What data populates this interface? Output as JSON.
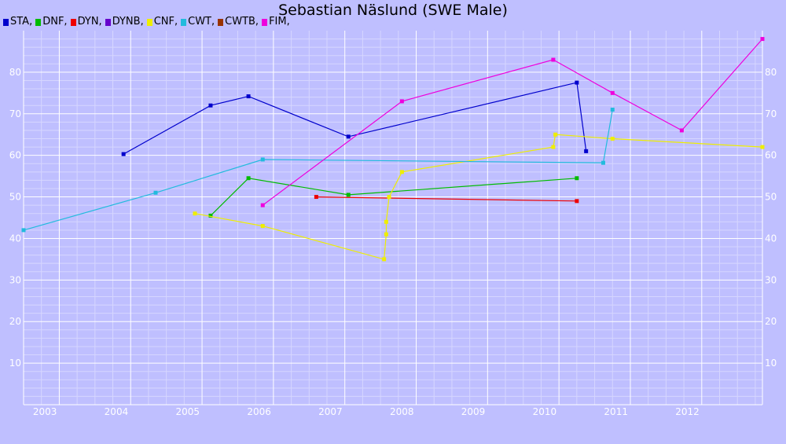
{
  "chart_data": {
    "type": "line",
    "title": "Sebastian Näslund (SWE Male)",
    "xlabel": "",
    "ylabel": "",
    "xlim": [
      2002.5,
      2012.85
    ],
    "ylim": [
      0,
      90
    ],
    "x_ticks": [
      "2003",
      "2004",
      "2005",
      "2006",
      "2007",
      "2008",
      "2009",
      "2010",
      "2011",
      "2012"
    ],
    "y_ticks": [
      "10",
      "20",
      "30",
      "40",
      "50",
      "60",
      "70",
      "80"
    ],
    "grid": true,
    "legend_position": "top-left",
    "legend": [
      {
        "label": "STA,",
        "color": "#0000cc"
      },
      {
        "label": "DNF,",
        "color": "#00bb00"
      },
      {
        "label": "DYN,",
        "color": "#ee0000"
      },
      {
        "label": "DYNB,",
        "color": "#6600cc"
      },
      {
        "label": "CNF,",
        "color": "#eeee00"
      },
      {
        "label": "CWT,",
        "color": "#22bbdd"
      },
      {
        "label": "CWTB,",
        "color": "#993300"
      },
      {
        "label": "FIM,",
        "color": "#ee00dd"
      }
    ],
    "series": [
      {
        "name": "STA",
        "color": "#0000cc",
        "x": [
          2003.9,
          2005.12,
          2005.65,
          2007.05,
          2010.25,
          2010.38
        ],
        "y": [
          60.3,
          72.0,
          74.2,
          64.5,
          77.5,
          61.0
        ]
      },
      {
        "name": "DNF",
        "color": "#00bb00",
        "x": [
          2005.12,
          2005.65,
          2007.05,
          2010.25
        ],
        "y": [
          45.5,
          54.5,
          50.5,
          54.5
        ]
      },
      {
        "name": "DYN",
        "color": "#ee0000",
        "x": [
          2006.6,
          2010.25
        ],
        "y": [
          50.0,
          49.0
        ]
      },
      {
        "name": "CNF",
        "color": "#eeee00",
        "x": [
          2004.9,
          2005.85,
          2007.55,
          2007.58,
          2007.58,
          2007.62,
          2007.8,
          2009.92,
          2009.95,
          2010.75,
          2012.85
        ],
        "y": [
          46.0,
          43.0,
          35.0,
          41.0,
          44.0,
          50.0,
          56.0,
          62.0,
          65.0,
          64.0,
          62.0
        ]
      },
      {
        "name": "CWT",
        "color": "#22bbdd",
        "x": [
          2002.5,
          2004.35,
          2005.85,
          2010.62,
          2010.75
        ],
        "y": [
          42.0,
          51.0,
          59.0,
          58.2,
          71.0
        ]
      },
      {
        "name": "FIM",
        "color": "#ee00dd",
        "x": [
          2005.85,
          2007.8,
          2009.92,
          2010.75,
          2011.72,
          2012.85
        ],
        "y": [
          48.0,
          73.0,
          83.0,
          75.0,
          66.0,
          88.0
        ]
      }
    ]
  }
}
